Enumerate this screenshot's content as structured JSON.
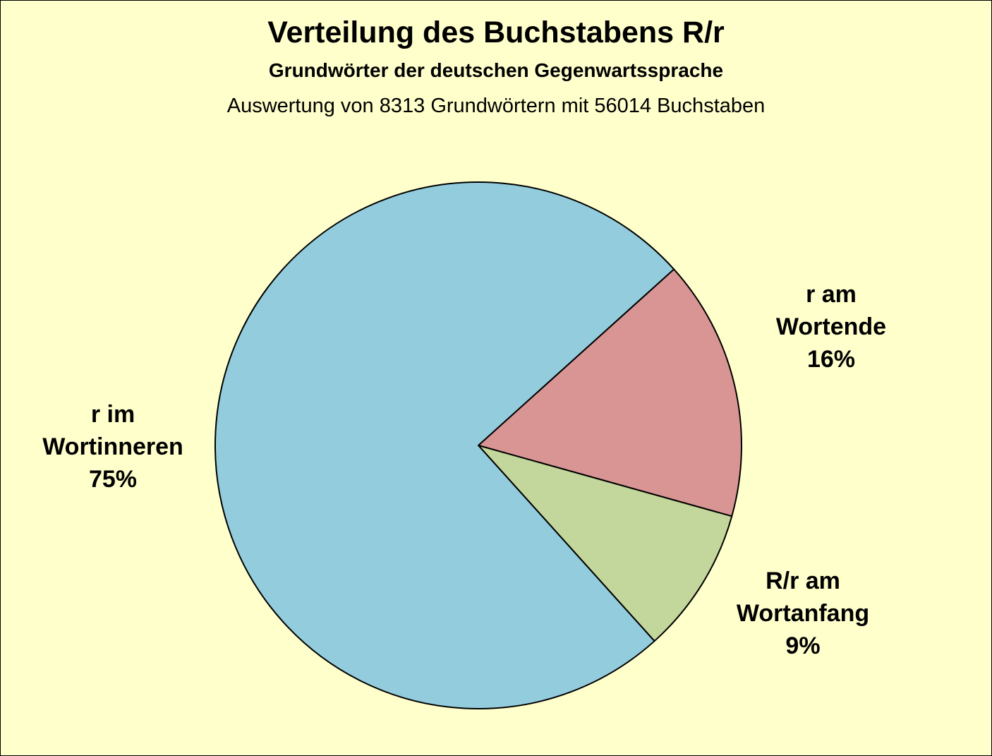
{
  "chart_data": {
    "type": "pie",
    "title": "Verteilung des Buchstabens R/r",
    "subtitle": "Grundwörter der deutschen Gegenwartssprache",
    "note": "Auswertung von 8313 Grundwörtern mit 56014 Buchstaben",
    "slices": [
      {
        "label_line1": "r am",
        "label_line2": "Wortende",
        "percent_label": "16%",
        "value": 16,
        "color": "#d99594"
      },
      {
        "label_line1": "R/r am",
        "label_line2": "Wortanfang",
        "percent_label": "9%",
        "value": 9,
        "color": "#c3d69b"
      },
      {
        "label_line1": "r im",
        "label_line2": "Wortinneren",
        "percent_label": "75%",
        "value": 75,
        "color": "#93cddd"
      }
    ],
    "legend": "none",
    "background": "#ffffcc"
  }
}
